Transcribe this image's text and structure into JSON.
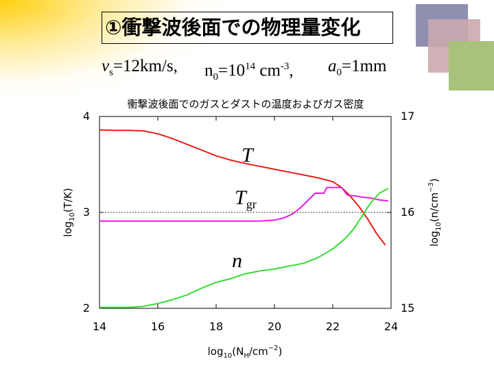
{
  "slide": {
    "title": "①衝撃波後面での物理量変化",
    "param_v_sym": "ν",
    "param_v_sub": "s",
    "param_v_val": "=12km/s,",
    "param_n_sym": "n",
    "param_n_sub": "0",
    "param_n_eq": "=10",
    "param_n_exp": "14",
    "param_n_unit": " cm",
    "param_n_unit_exp": "-3",
    "param_n_comma": ",",
    "param_a_sym": "a",
    "param_a_sub": "0",
    "param_a_val": "=1mm"
  },
  "chart_data": {
    "type": "line",
    "title": "衝撃波後面でのガスとダストの温度およびガス密度",
    "xlabel": "log10(NH/cm−2)",
    "ylabel_left": "log10(T/K)",
    "ylabel_right": "log10(n/cm−3)",
    "xlim": [
      14,
      24
    ],
    "ylim_left": [
      2,
      4
    ],
    "ylim_right": [
      15,
      17
    ],
    "x_ticks": [
      "14",
      "16",
      "18",
      "20",
      "22",
      "24"
    ],
    "y_ticks_left": [
      "4",
      "3",
      "2"
    ],
    "y_ticks_right": [
      "17",
      "16",
      "15"
    ],
    "reference_line_left_y": 3.0,
    "series": [
      {
        "name": "T",
        "label_main": "T",
        "label_sub": "",
        "axis": "left",
        "color": "#e61e10",
        "points": [
          [
            14.0,
            3.86
          ],
          [
            14.5,
            3.855
          ],
          [
            15.0,
            3.855
          ],
          [
            15.5,
            3.85
          ],
          [
            16.0,
            3.82
          ],
          [
            16.5,
            3.77
          ],
          [
            17.0,
            3.71
          ],
          [
            17.5,
            3.65
          ],
          [
            18.0,
            3.59
          ],
          [
            18.5,
            3.545
          ],
          [
            19.0,
            3.51
          ],
          [
            19.5,
            3.48
          ],
          [
            20.0,
            3.45
          ],
          [
            20.5,
            3.42
          ],
          [
            21.0,
            3.39
          ],
          [
            21.5,
            3.36
          ],
          [
            22.0,
            3.32
          ],
          [
            22.3,
            3.26
          ],
          [
            22.6,
            3.17
          ],
          [
            22.9,
            3.06
          ],
          [
            23.2,
            2.93
          ],
          [
            23.5,
            2.78
          ],
          [
            23.8,
            2.66
          ]
        ]
      },
      {
        "name": "Tgr",
        "label_main": "T",
        "label_sub": "gr",
        "axis": "left",
        "color": "#e619e6",
        "points": [
          [
            14.0,
            2.91
          ],
          [
            15.0,
            2.91
          ],
          [
            16.0,
            2.91
          ],
          [
            17.0,
            2.91
          ],
          [
            18.0,
            2.91
          ],
          [
            19.0,
            2.91
          ],
          [
            19.5,
            2.91
          ],
          [
            20.0,
            2.92
          ],
          [
            20.3,
            2.94
          ],
          [
            20.6,
            2.98
          ],
          [
            20.9,
            3.05
          ],
          [
            21.2,
            3.14
          ],
          [
            21.4,
            3.2
          ],
          [
            21.6,
            3.2
          ],
          [
            21.7,
            3.2
          ],
          [
            21.8,
            3.26
          ],
          [
            22.1,
            3.26
          ],
          [
            22.3,
            3.26
          ],
          [
            22.5,
            3.18
          ],
          [
            22.8,
            3.17
          ],
          [
            23.0,
            3.16
          ],
          [
            23.3,
            3.15
          ],
          [
            23.6,
            3.13
          ],
          [
            23.9,
            3.12
          ]
        ]
      },
      {
        "name": "n",
        "label_main": "n",
        "label_sub": "",
        "axis": "right",
        "color": "#33dd33",
        "points": [
          [
            14.0,
            15.01
          ],
          [
            14.5,
            15.01
          ],
          [
            15.0,
            15.01
          ],
          [
            15.5,
            15.02
          ],
          [
            16.0,
            15.05
          ],
          [
            16.5,
            15.09
          ],
          [
            17.0,
            15.14
          ],
          [
            17.5,
            15.21
          ],
          [
            18.0,
            15.27
          ],
          [
            18.5,
            15.31
          ],
          [
            19.0,
            15.36
          ],
          [
            19.5,
            15.39
          ],
          [
            20.0,
            15.41
          ],
          [
            20.5,
            15.44
          ],
          [
            21.0,
            15.47
          ],
          [
            21.5,
            15.53
          ],
          [
            22.0,
            15.62
          ],
          [
            22.4,
            15.72
          ],
          [
            22.7,
            15.82
          ],
          [
            23.0,
            15.96
          ],
          [
            23.3,
            16.1
          ],
          [
            23.6,
            16.2
          ],
          [
            23.9,
            16.25
          ]
        ]
      }
    ]
  }
}
